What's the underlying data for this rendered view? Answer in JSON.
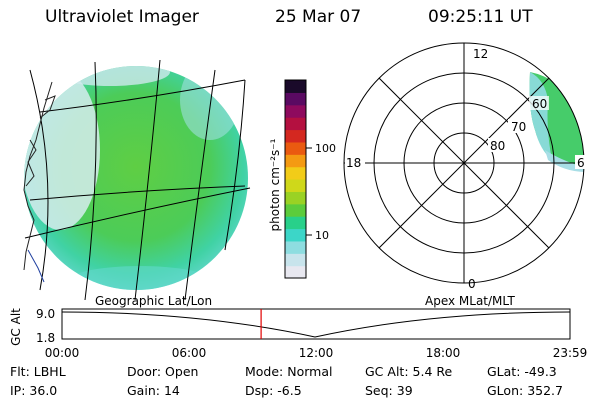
{
  "header": {
    "title": "Ultraviolet Imager",
    "date": "25 Mar 07",
    "time": "09:25:11 UT"
  },
  "colorbar": {
    "unit_label": "photon cm⁻²s⁻¹",
    "tick_labels": [
      "100",
      "10"
    ],
    "colors": [
      "#e8e8f0",
      "#c8e4ec",
      "#8edde0",
      "#3cd6c8",
      "#28d08a",
      "#5ccc3c",
      "#9ad224",
      "#cfd81a",
      "#f2cc18",
      "#f49a12",
      "#ea5a10",
      "#d42820",
      "#b41040",
      "#8e0a5e",
      "#5a0a62",
      "#1a0a2a"
    ]
  },
  "polar_plot": {
    "clock_labels": [
      "12",
      "18",
      "6",
      "0"
    ],
    "lat_labels": [
      "60",
      "70",
      "80"
    ]
  },
  "timeline": {
    "y_axis_label": "GC Alt",
    "y_ticks": [
      "9.0",
      "1.8"
    ],
    "left_caption": "Geographic Lat/Lon",
    "right_caption": "Apex MLat/MLT",
    "x_ticks": [
      "00:00",
      "06:00",
      "12:00",
      "18:00",
      "23:59"
    ],
    "current_time_fraction": 0.392
  },
  "footer": {
    "row1": [
      {
        "key": "Flt:",
        "value": "LBHL"
      },
      {
        "key": "Door:",
        "value": "Open"
      },
      {
        "key": "Mode:",
        "value": "Normal"
      },
      {
        "key": "GC Alt:",
        "value": "5.4 Re"
      },
      {
        "key": "GLat:",
        "value": "-49.3"
      }
    ],
    "row2": [
      {
        "key": "IP:",
        "value": "36.0"
      },
      {
        "key": "Gain:",
        "value": "14"
      },
      {
        "key": "Dsp:",
        "value": "-6.5"
      },
      {
        "key": "Seq:",
        "value": "39"
      },
      {
        "key": "GLon:",
        "value": "352.7"
      }
    ]
  }
}
